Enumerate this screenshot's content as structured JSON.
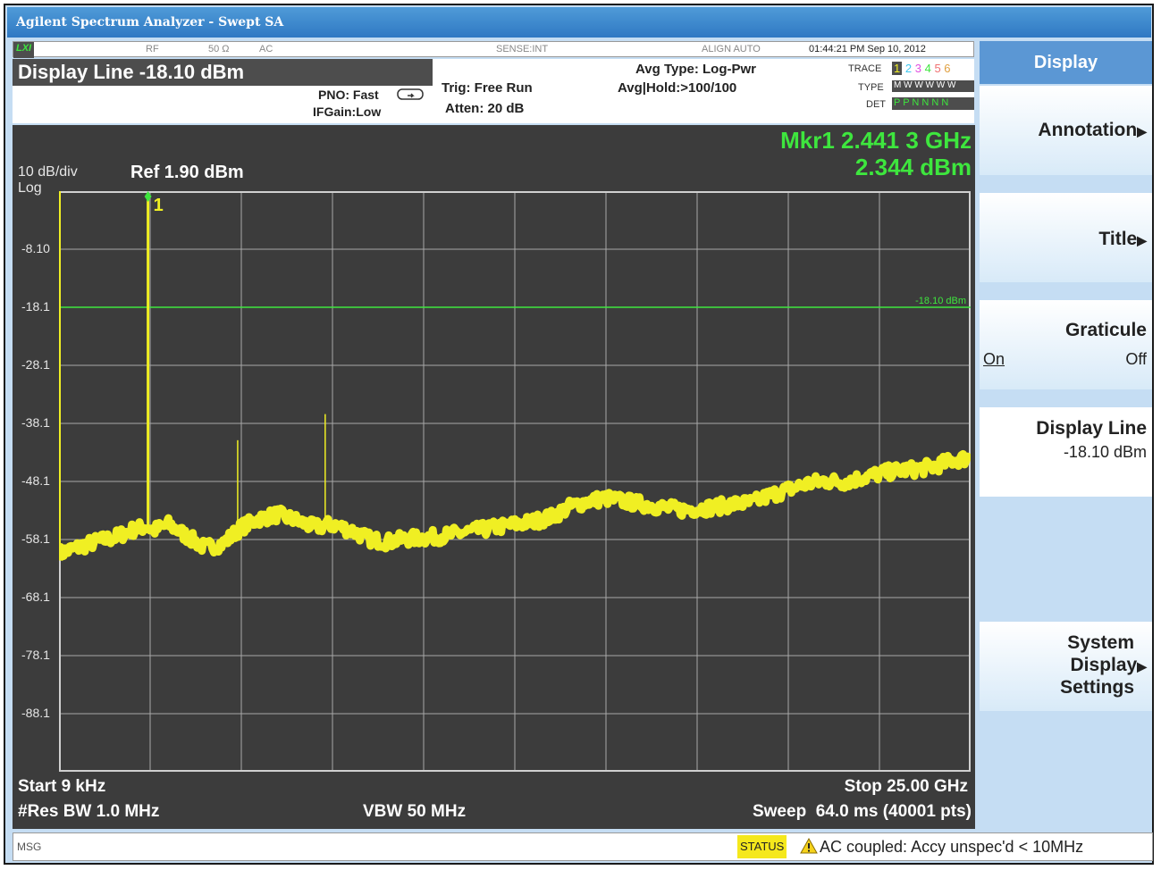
{
  "window": {
    "title": "Agilent Spectrum Analyzer - Swept SA"
  },
  "status_row": {
    "lxi": "LXI",
    "rf": "RF",
    "impedance": "50 Ω",
    "coupling": "AC",
    "sense": "SENSE:INT",
    "align": "ALIGN AUTO",
    "datetime": "01:44:21 PM Sep 10, 2012"
  },
  "header": {
    "display_line": "Display Line -18.10 dBm",
    "pno": "PNO: Fast",
    "ifgain": "IFGain:Low",
    "trig": "Trig: Free Run",
    "atten": "Atten: 20 dB",
    "avg_type": "Avg Type: Log-Pwr",
    "avg_hold": "Avg|Hold:>100/100",
    "trace_label": "TRACE",
    "trace_nums": [
      "1",
      "2",
      "3",
      "4",
      "5",
      "6"
    ],
    "type_label": "TYPE",
    "type_values": "M W W W W W",
    "det_label": "DET",
    "det_values": "P P N N N N"
  },
  "marker": {
    "freq": "Mkr1 2.441 3 GHz",
    "amp": "2.344 dBm",
    "label": "1"
  },
  "chart_data": {
    "type": "line",
    "scale": "10 dB/div",
    "scale_type": "Log",
    "ref_level": "Ref 1.90 dBm",
    "y_ticks": [
      "-8.10",
      "-18.1",
      "-28.1",
      "-38.1",
      "-48.1",
      "-58.1",
      "-68.1",
      "-78.1",
      "-88.1"
    ],
    "ylim": [
      -98.1,
      1.9
    ],
    "xlim_ghz": [
      9e-06,
      25.0
    ],
    "display_line": {
      "value": -18.1,
      "label": "-18.10 dBm"
    },
    "series": [
      {
        "name": "Trace 1",
        "x_ghz": [
          0,
          0.5,
          1.0,
          1.5,
          2.0,
          2.4,
          2.6,
          3.0,
          3.5,
          4.0,
          4.5,
          5.0,
          5.5,
          6.0,
          6.5,
          7.0,
          7.5,
          8.0,
          8.5,
          9.0,
          9.5,
          10.0,
          10.5,
          11.0,
          11.5,
          12.0,
          12.5,
          13.0,
          13.5,
          14.0,
          14.5,
          15.0,
          15.5,
          16.0,
          16.5,
          17.0,
          17.5,
          18.0,
          18.5,
          19.0,
          19.5,
          20.0,
          20.5,
          21.0,
          21.5,
          22.0,
          22.5,
          23.0,
          23.5,
          24.0,
          24.5,
          25.0
        ],
        "y_dbm": [
          -60.5,
          -59.5,
          -58.5,
          -57.8,
          -56.5,
          -55.8,
          -56.5,
          -55.5,
          -57.5,
          -59.5,
          -58.8,
          -56.0,
          -54.5,
          -53.8,
          -54.8,
          -56.0,
          -55.5,
          -56.5,
          -58.0,
          -58.5,
          -58.0,
          -57.8,
          -57.5,
          -57.0,
          -56.5,
          -56.0,
          -55.5,
          -55.0,
          -54.2,
          -52.5,
          -51.5,
          -51.0,
          -51.5,
          -52.0,
          -52.5,
          -53.0,
          -52.8,
          -52.5,
          -52.0,
          -51.8,
          -50.5,
          -49.5,
          -48.5,
          -48.0,
          -48.2,
          -47.5,
          -46.8,
          -46.2,
          -46.0,
          -45.5,
          -44.5,
          -44.0
        ]
      }
    ],
    "spurs": [
      {
        "x_ghz": 2.4413,
        "y_dbm": 2.344
      },
      {
        "x_ghz": 4.9,
        "y_dbm": -41.0
      },
      {
        "x_ghz": 7.3,
        "y_dbm": -36.5
      }
    ]
  },
  "footer": {
    "start": "Start 9 kHz",
    "stop": "Stop 25.00 GHz",
    "res_bw": "#Res BW 1.0 MHz",
    "vbw": "VBW 50 MHz",
    "sweep": "Sweep  64.0 ms (40001 pts)"
  },
  "softkeys": {
    "menu_title": "Display",
    "annotation": "Annotation",
    "title": "Title",
    "graticule": "Graticule",
    "graticule_on": "On",
    "graticule_off": "Off",
    "display_line": "Display Line",
    "display_line_value": "-18.10 dBm",
    "system_display_1": "System",
    "system_display_2": "Display",
    "system_display_3": "Settings"
  },
  "msg_bar": {
    "msg": "MSG",
    "status": "STATUS",
    "message": "AC coupled: Accy unspec'd < 10MHz"
  },
  "colors": {
    "trace": "#f0ef23",
    "marker_text": "#3ee63e",
    "display_line": "#3ee63e",
    "screen_bg": "#3c3c3c",
    "softkey_bg": "#c5ddf3"
  }
}
